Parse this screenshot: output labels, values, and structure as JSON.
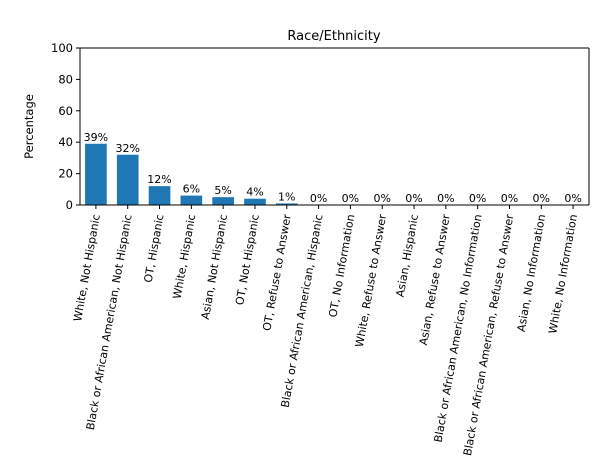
{
  "chart_data": {
    "type": "bar",
    "title": "Race/Ethnicity",
    "xlabel": "",
    "ylabel": "Percentage",
    "ylim": [
      0,
      100
    ],
    "yticks": [
      0,
      20,
      40,
      60,
      80,
      100
    ],
    "grid": false,
    "bar_color": "#1f77b4",
    "categories": [
      "White, Not Hispanic",
      "Black or African American, Not Hispanic",
      "OT, Hispanic",
      "White, Hispanic",
      "Asian, Not Hispanic",
      "OT, Not Hispanic",
      "OT, Refuse to Answer",
      "Black or African American, Hispanic",
      "OT, No Information",
      "White, Refuse to Answer",
      "Asian, Hispanic",
      "Asian, Refuse to Answer",
      "Black or African American, No Information",
      "Black or African American, Refuse to Answer",
      "Asian, No Information",
      "White, No Information"
    ],
    "values": [
      39,
      32,
      12,
      6,
      5,
      4,
      1,
      0,
      0,
      0,
      0,
      0,
      0,
      0,
      0,
      0
    ],
    "data_labels": [
      "39%",
      "32%",
      "12%",
      "6%",
      "5%",
      "4%",
      "1%",
      "0%",
      "0%",
      "0%",
      "0%",
      "0%",
      "0%",
      "0%",
      "0%",
      "0%"
    ]
  }
}
